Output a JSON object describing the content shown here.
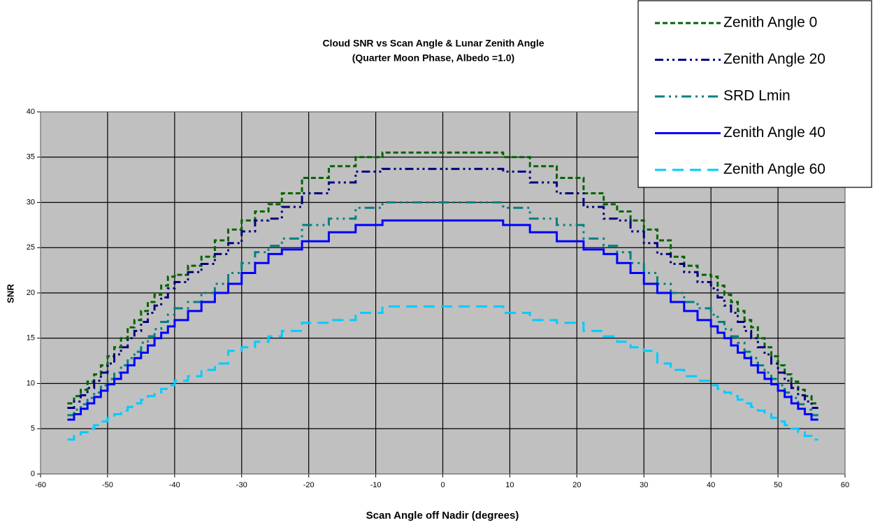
{
  "chart_data": {
    "type": "step",
    "title": "Cloud SNR vs Scan Angle & Lunar Zenith Angle",
    "subtitle": "(Quarter Moon Phase, Albedo =1.0)",
    "x_label": "Scan Angle off Nadir (degrees)",
    "y_label": "SNR",
    "x": [
      -56,
      -55,
      -54,
      -53,
      -52,
      -51,
      -50,
      -49,
      -48,
      -47,
      -46,
      -45,
      -44,
      -43,
      -42,
      -41,
      -40,
      -38,
      -36,
      -34,
      -32,
      -30,
      -28,
      -26,
      -24,
      -21,
      -17,
      -13,
      -9,
      9,
      13,
      17,
      21,
      24,
      26,
      28,
      30,
      32,
      34,
      36,
      38,
      40,
      41,
      42,
      43,
      44,
      45,
      46,
      47,
      48,
      49,
      50,
      51,
      52,
      53,
      54,
      55,
      56
    ],
    "series": [
      {
        "name": "Zenith Angle 0",
        "color": "#006400",
        "values": [
          7.8,
          8.6,
          9.3,
          10.2,
          11,
          12,
          13,
          14,
          15,
          16.2,
          17,
          18,
          19,
          19.8,
          20.8,
          21.8,
          22,
          23,
          24,
          25.8,
          27,
          28,
          29,
          29.8,
          31,
          32.7,
          34,
          35,
          35.5,
          35,
          34,
          32.7,
          31,
          29.8,
          29,
          28,
          27,
          25.8,
          24,
          23,
          22,
          21.8,
          20.8,
          19.8,
          19,
          18,
          17,
          16.2,
          15,
          14,
          13,
          12,
          11,
          10.2,
          9.3,
          8.6,
          7.8,
          7.8
        ]
      },
      {
        "name": "Zenith Angle 20",
        "color": "#000080",
        "values": [
          7.3,
          8,
          8.7,
          9.5,
          10.3,
          11.2,
          12.2,
          13.2,
          14,
          15,
          15.8,
          16.8,
          17.8,
          18.6,
          19.5,
          20.5,
          21.2,
          22.3,
          23.2,
          24.3,
          25.5,
          26.8,
          28,
          28.2,
          29.5,
          31,
          32.2,
          33.4,
          33.7,
          33.4,
          32.2,
          31,
          29.5,
          28.2,
          28,
          26.8,
          25.5,
          24.3,
          23.2,
          22.3,
          21.2,
          20.5,
          19.5,
          18.6,
          17.8,
          16.8,
          15.8,
          15,
          14,
          13.2,
          12.2,
          11.2,
          10.3,
          9.5,
          8.7,
          8,
          7.3,
          7.3
        ]
      },
      {
        "name": "SRD Lmin",
        "color": "#008080",
        "values": [
          6.5,
          7.1,
          7.7,
          8.4,
          9,
          9.8,
          10.5,
          11.2,
          12,
          12.8,
          13.5,
          14.5,
          15.2,
          16,
          16.8,
          17.6,
          18.3,
          19,
          20,
          21,
          22.2,
          23.3,
          24.5,
          25.2,
          26,
          27.5,
          28.2,
          29.4,
          30,
          29.4,
          28.2,
          27.5,
          26,
          25.2,
          24.5,
          23.3,
          22.2,
          21,
          20,
          19,
          18.3,
          17.6,
          16.8,
          16,
          15.2,
          14.5,
          13.5,
          12.8,
          12,
          11.2,
          10.5,
          9.8,
          9,
          8.4,
          7.7,
          7.1,
          6.5,
          6.5
        ]
      },
      {
        "name": "Zenith Angle 40",
        "color": "#0000FF",
        "values": [
          6,
          6.6,
          7.2,
          7.8,
          8.5,
          9.2,
          9.9,
          10.5,
          11.2,
          12,
          12.8,
          13.4,
          14.2,
          15,
          15.6,
          16.3,
          17,
          18,
          19,
          20,
          21,
          22.2,
          23.3,
          24.3,
          24.8,
          25.7,
          26.7,
          27.5,
          28,
          27.5,
          26.7,
          25.7,
          24.8,
          24.3,
          23.3,
          22.2,
          21,
          20,
          19,
          18,
          17,
          16.3,
          15.6,
          15,
          14.2,
          13.4,
          12.8,
          12,
          11.2,
          10.5,
          9.9,
          9.2,
          8.5,
          7.8,
          7.2,
          6.6,
          6,
          6
        ]
      },
      {
        "name": "Zenith Angle 60",
        "color": "#00CCFF",
        "values": [
          3.8,
          4.2,
          4.6,
          5,
          5.4,
          5.8,
          6.2,
          6.6,
          7,
          7.4,
          7.8,
          8.2,
          8.6,
          9,
          9.4,
          9.8,
          10.3,
          10.8,
          11.5,
          12.2,
          13.6,
          14,
          14.6,
          15.2,
          15.8,
          16.7,
          17,
          17.8,
          18.5,
          17.8,
          17,
          16.7,
          15.8,
          15.2,
          14.6,
          14,
          13.6,
          12.2,
          11.5,
          10.8,
          10.3,
          9.8,
          9.4,
          9,
          8.6,
          8.2,
          7.8,
          7.4,
          7,
          6.6,
          6.2,
          5.8,
          5.4,
          5,
          4.6,
          4.2,
          3.8,
          3.8
        ]
      }
    ],
    "xlim": [
      -60,
      60
    ],
    "xticks": [
      -60,
      -50,
      -40,
      -30,
      -20,
      -10,
      0,
      10,
      20,
      30,
      40,
      50,
      60
    ],
    "ylim": [
      0,
      40
    ],
    "yticks": [
      0,
      5,
      10,
      15,
      20,
      25,
      30,
      35,
      40
    ],
    "grid": true,
    "legend": "upper right"
  }
}
